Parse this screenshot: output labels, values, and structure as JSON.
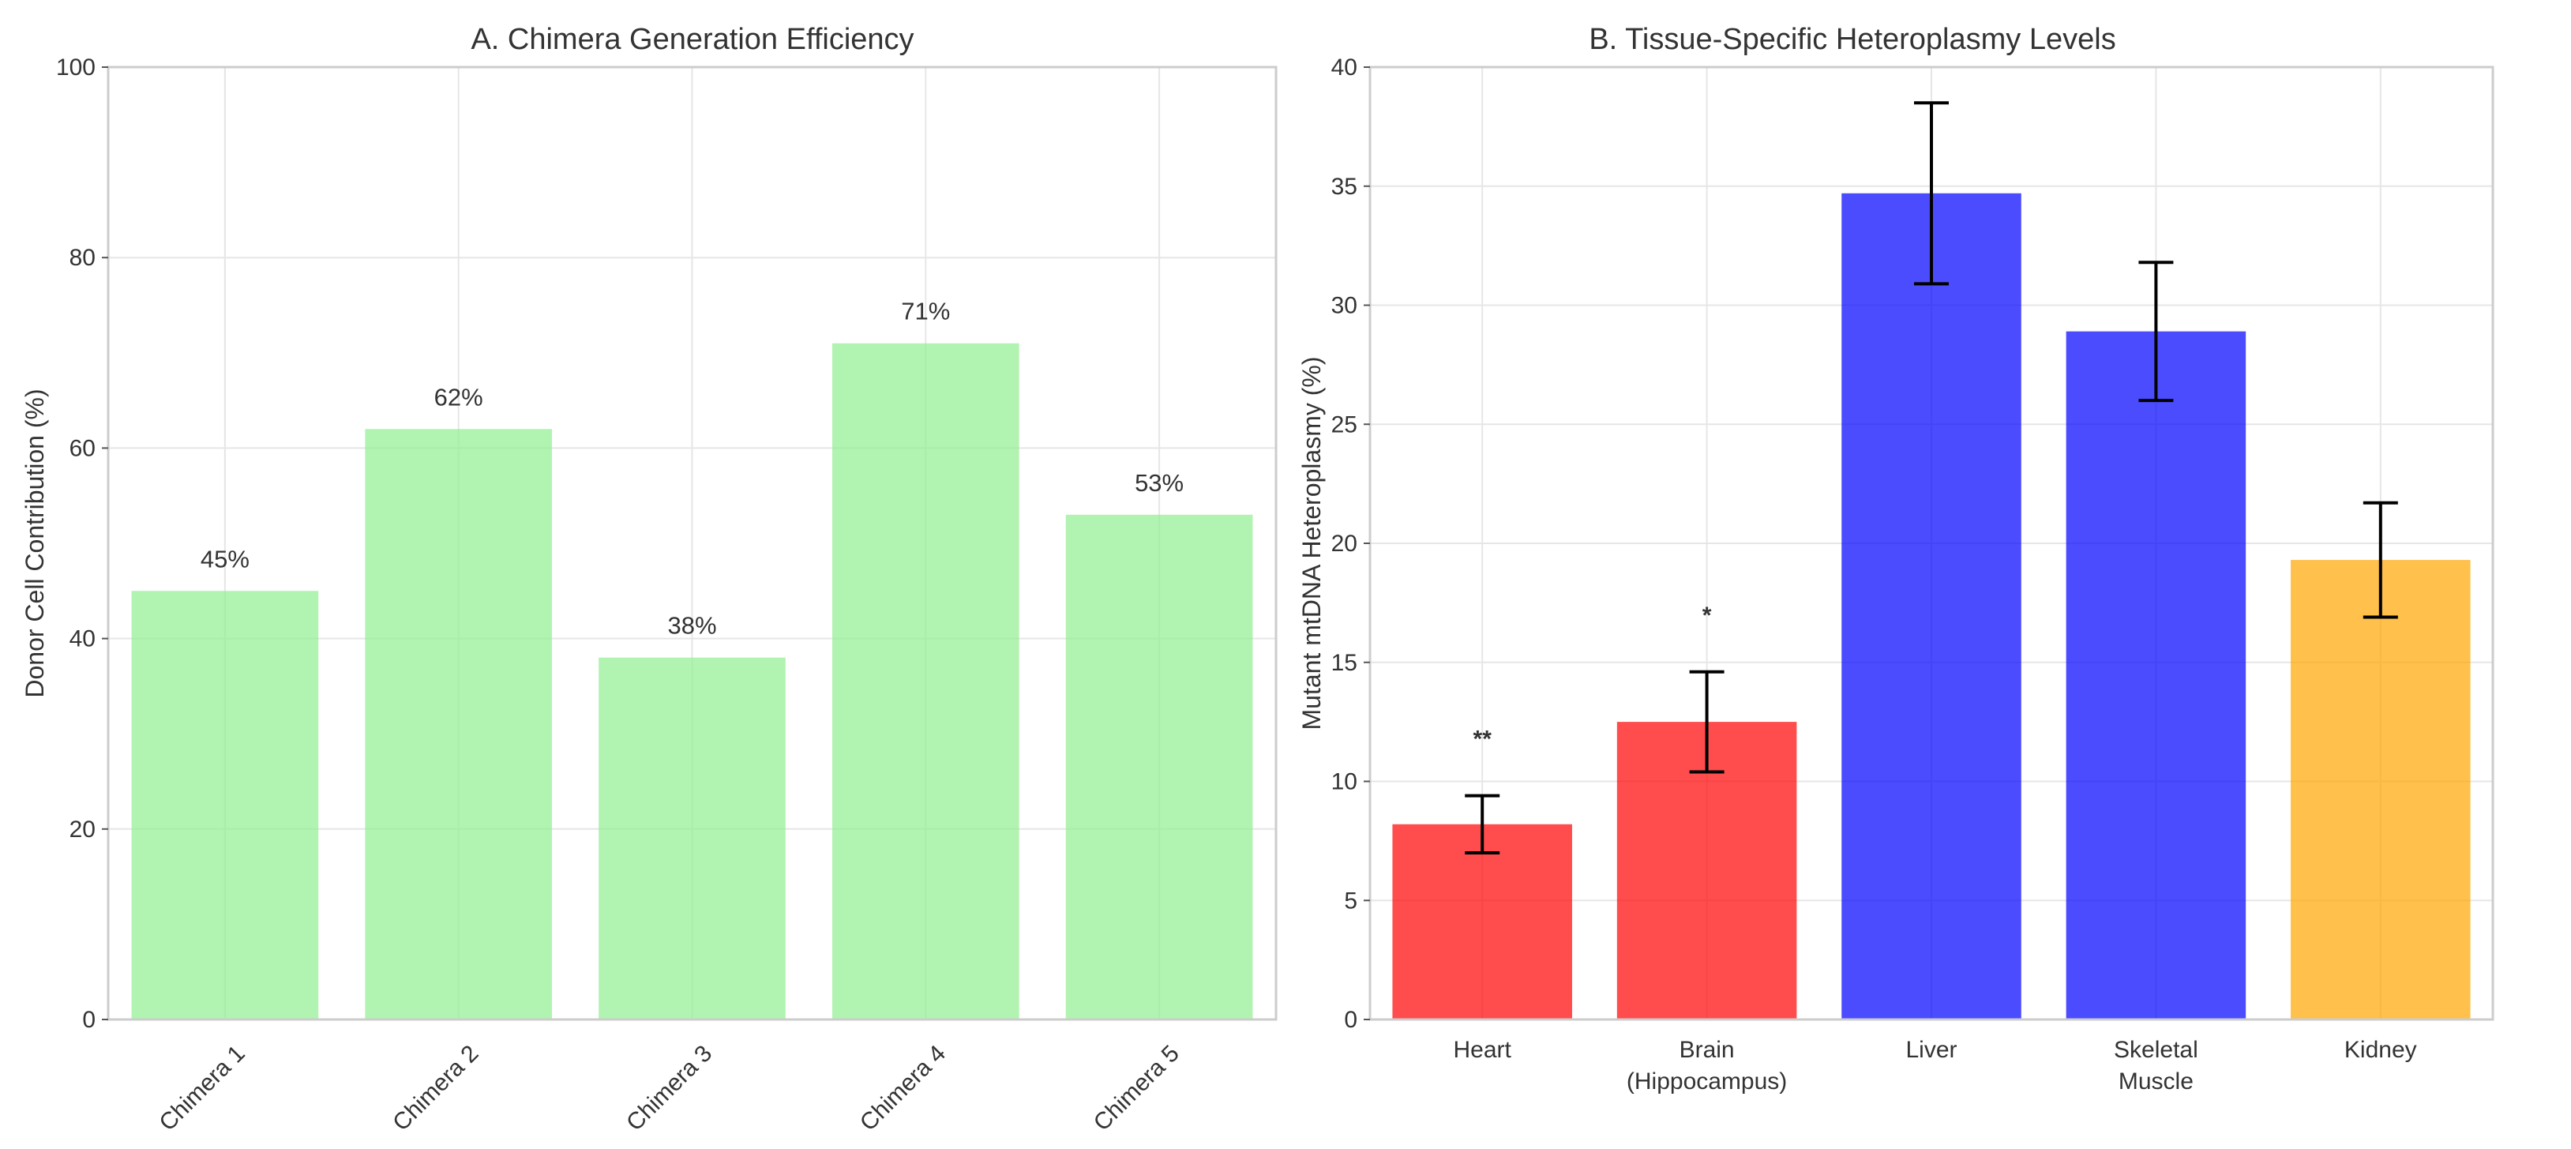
{
  "chart_data": [
    {
      "type": "bar",
      "title": "A. Chimera Generation Efficiency",
      "xlabel": "",
      "ylabel": "Donor Cell Contribution (%)",
      "ylim": [
        0,
        100
      ],
      "yticks": [
        0,
        20,
        40,
        60,
        80,
        100
      ],
      "categories": [
        "Chimera 1",
        "Chimera 2",
        "Chimera 3",
        "Chimera 4",
        "Chimera 5"
      ],
      "values": [
        45,
        62,
        38,
        71,
        53
      ],
      "value_labels": [
        "45%",
        "62%",
        "38%",
        "71%",
        "53%"
      ],
      "colors": [
        "#90ee90",
        "#90ee90",
        "#90ee90",
        "#90ee90",
        "#90ee90"
      ],
      "grid": true,
      "legend": "none"
    },
    {
      "type": "bar",
      "title": "B. Tissue-Specific Heteroplasmy Levels",
      "xlabel": "",
      "ylabel": "Mutant mtDNA Heteroplasmy (%)",
      "ylim": [
        0,
        40
      ],
      "yticks": [
        0,
        5,
        10,
        15,
        20,
        25,
        30,
        35,
        40
      ],
      "categories": [
        "Heart",
        "Brain\n(Hippocampus)",
        "Liver",
        "Skeletal\nMuscle",
        "Kidney"
      ],
      "values": [
        8.2,
        12.5,
        34.7,
        28.9,
        19.3
      ],
      "errors": [
        1.2,
        2.1,
        3.8,
        2.9,
        2.4
      ],
      "significance": [
        "**",
        "*",
        "",
        "",
        ""
      ],
      "colors": [
        "#ff0000",
        "#ff0000",
        "#0000ff",
        "#0000ff",
        "#ffa500"
      ],
      "grid": true,
      "legend": "none"
    }
  ]
}
